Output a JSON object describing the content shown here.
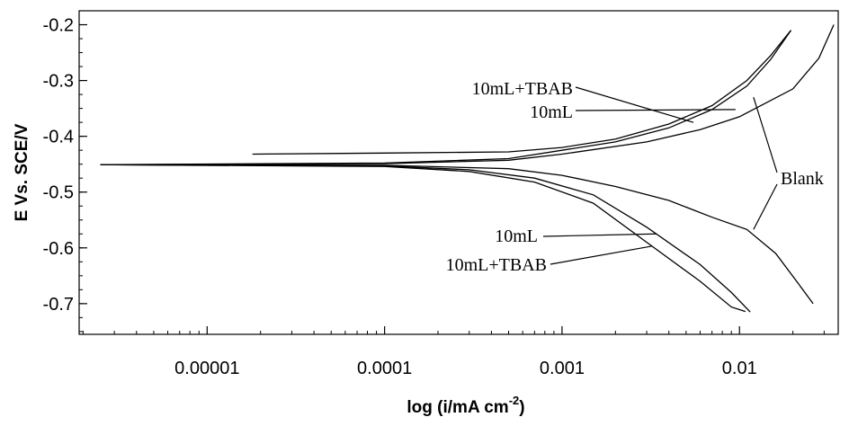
{
  "chart_data": {
    "type": "line",
    "title": "",
    "xlabel": "log (i/mA cm",
    "xlabel_sup": "-2",
    "xlabel_close": ")",
    "ylabel": "E Vs. SCE/V",
    "x_scale": "log",
    "xlim": [
      1.9e-06,
      0.036
    ],
    "ylim": [
      -0.755,
      -0.175
    ],
    "x_ticks": [
      1e-05,
      0.0001,
      0.001,
      0.01
    ],
    "x_tick_labels": [
      "0.00001",
      "0.0001",
      "0.001",
      "0.01"
    ],
    "y_ticks": [
      -0.2,
      -0.3,
      -0.4,
      -0.5,
      -0.6,
      -0.7
    ],
    "y_tick_labels": [
      "-0.2",
      "-0.3",
      "-0.4",
      "-0.5",
      "-0.6",
      "-0.7"
    ],
    "grid": false,
    "legend": "none (curves labeled directly with annotations)",
    "series": [
      {
        "name": "Blank",
        "anodic": [
          [
            2.5e-06,
            -0.451
          ],
          [
            0.0001,
            -0.449
          ],
          [
            0.0005,
            -0.443
          ],
          [
            0.001,
            -0.432
          ],
          [
            0.003,
            -0.41
          ],
          [
            0.006,
            -0.388
          ],
          [
            0.01,
            -0.365
          ],
          [
            0.02,
            -0.315
          ],
          [
            0.028,
            -0.26
          ],
          [
            0.034,
            -0.2
          ]
        ],
        "cathodic": [
          [
            2.5e-06,
            -0.451
          ],
          [
            0.0001,
            -0.452
          ],
          [
            0.0005,
            -0.458
          ],
          [
            0.001,
            -0.47
          ],
          [
            0.002,
            -0.49
          ],
          [
            0.004,
            -0.515
          ],
          [
            0.007,
            -0.545
          ],
          [
            0.011,
            -0.567
          ],
          [
            0.016,
            -0.61
          ],
          [
            0.021,
            -0.66
          ],
          [
            0.026,
            -0.7
          ]
        ]
      },
      {
        "name": "10mL",
        "anodic": [
          [
            2.5e-06,
            -0.451
          ],
          [
            0.0001,
            -0.448
          ],
          [
            0.0005,
            -0.44
          ],
          [
            0.001,
            -0.425
          ],
          [
            0.002,
            -0.41
          ],
          [
            0.004,
            -0.385
          ],
          [
            0.007,
            -0.352
          ],
          [
            0.011,
            -0.31
          ],
          [
            0.015,
            -0.262
          ],
          [
            0.0195,
            -0.21
          ]
        ],
        "cathodic": [
          [
            2.5e-06,
            -0.451
          ],
          [
            0.0001,
            -0.453
          ],
          [
            0.0003,
            -0.46
          ],
          [
            0.0007,
            -0.475
          ],
          [
            0.0015,
            -0.505
          ],
          [
            0.003,
            -0.563
          ],
          [
            0.006,
            -0.63
          ],
          [
            0.009,
            -0.68
          ],
          [
            0.0115,
            -0.715
          ]
        ]
      },
      {
        "name": "10mL+TBAB",
        "anodic": [
          [
            1.8e-05,
            -0.432
          ],
          [
            0.0001,
            -0.43
          ],
          [
            0.0005,
            -0.428
          ],
          [
            0.001,
            -0.42
          ],
          [
            0.002,
            -0.405
          ],
          [
            0.004,
            -0.378
          ],
          [
            0.007,
            -0.345
          ],
          [
            0.011,
            -0.3
          ],
          [
            0.015,
            -0.255
          ],
          [
            0.0195,
            -0.21
          ]
        ],
        "cathodic": [
          [
            2.5e-06,
            -0.451
          ],
          [
            0.0001,
            -0.454
          ],
          [
            0.0003,
            -0.463
          ],
          [
            0.0007,
            -0.482
          ],
          [
            0.0015,
            -0.52
          ],
          [
            0.003,
            -0.59
          ],
          [
            0.006,
            -0.66
          ],
          [
            0.009,
            -0.706
          ],
          [
            0.0108,
            -0.714
          ]
        ]
      }
    ],
    "annotations": [
      {
        "text": "10mL+TBAB",
        "target": "10mL+TBAB anodic"
      },
      {
        "text": "10mL",
        "target": "10mL anodic"
      },
      {
        "text": "Blank",
        "target": "Blank anodic and cathodic"
      },
      {
        "text": "10mL",
        "target": "10mL cathodic"
      },
      {
        "text": "10mL+TBAB",
        "target": "10mL+TBAB cathodic"
      }
    ]
  }
}
